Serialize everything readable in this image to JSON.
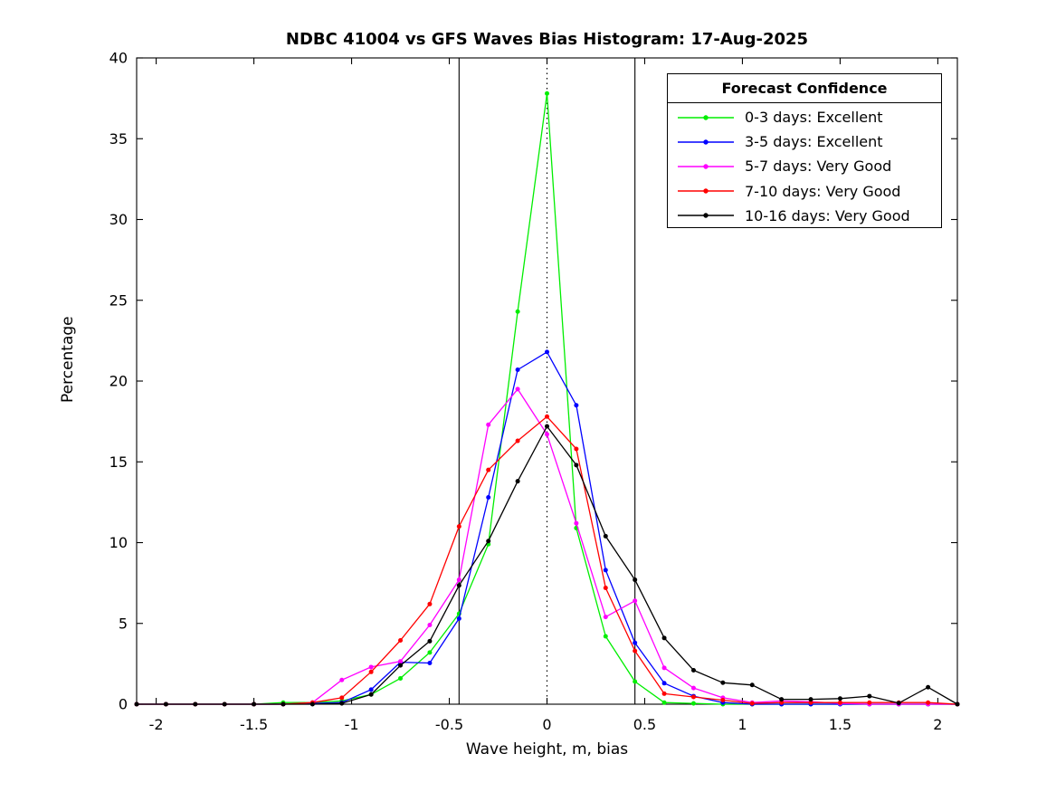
{
  "figure": {
    "title": "NDBC 41004 vs GFS Waves Bias Histogram: 17-Aug-2025",
    "background_color": "#FFFFFF",
    "axes_color": "#000000"
  },
  "chart_data": {
    "type": "line",
    "title": "NDBC 41004 vs GFS Waves Bias Histogram: 17-Aug-2025",
    "xlabel": "Wave height, m, bias",
    "ylabel": "Percentage",
    "xlim": [
      -2.1,
      2.1
    ],
    "ylim": [
      0,
      40
    ],
    "grid": false,
    "xticks": [
      -2,
      -1.5,
      -1,
      -0.5,
      0,
      0.5,
      1,
      1.5,
      2
    ],
    "xtick_labels": [
      "-2",
      "-1.5",
      "-1",
      "-0.5",
      "0",
      "0.5",
      "1",
      "1.5",
      "2"
    ],
    "yticks": [
      0,
      5,
      10,
      15,
      20,
      25,
      30,
      35,
      40
    ],
    "ytick_labels": [
      "0",
      "5",
      "10",
      "15",
      "20",
      "25",
      "30",
      "35",
      "40"
    ],
    "reference_lines": {
      "solid_vertical": [
        -0.45,
        0.45
      ],
      "dotted_vertical": [
        0
      ]
    },
    "legend": {
      "title": "Forecast Confidence",
      "position": "top-right"
    },
    "x": [
      -2.1,
      -1.95,
      -1.8,
      -1.65,
      -1.5,
      -1.35,
      -1.2,
      -1.05,
      -0.9,
      -0.75,
      -0.6,
      -0.45,
      -0.3,
      -0.15,
      0,
      0.15,
      0.3,
      0.45,
      0.6,
      0.75,
      0.9,
      1.05,
      1.2,
      1.35,
      1.5,
      1.65,
      1.8,
      1.95,
      2.1
    ],
    "series": [
      {
        "name": "0-3 days: Excellent",
        "color": "#00EE00",
        "values": [
          0,
          0,
          0,
          0,
          0,
          0.1,
          0.1,
          0.2,
          0.6,
          1.6,
          3.2,
          5.6,
          9.9,
          24.3,
          37.8,
          10.9,
          4.2,
          1.4,
          0.1,
          0.05,
          0,
          0,
          0,
          0,
          0,
          0,
          0,
          0,
          0
        ]
      },
      {
        "name": "3-5 days: Excellent",
        "color": "#0000FF",
        "values": [
          0,
          0,
          0,
          0,
          0,
          0,
          0.05,
          0.1,
          0.9,
          2.6,
          2.55,
          5.3,
          12.8,
          20.7,
          21.8,
          18.5,
          8.3,
          3.8,
          1.3,
          0.5,
          0.1,
          0,
          0,
          0,
          0,
          0,
          0,
          0,
          0
        ]
      },
      {
        "name": "5-7 days: Very Good",
        "color": "#FF00FF",
        "values": [
          0,
          0,
          0,
          0,
          0,
          0,
          0.1,
          1.5,
          2.3,
          2.65,
          4.9,
          7.7,
          17.3,
          19.5,
          16.7,
          11.2,
          5.4,
          6.4,
          2.25,
          1.0,
          0.4,
          0.1,
          0.2,
          0.15,
          0.05,
          0,
          0,
          0,
          0
        ]
      },
      {
        "name": "7-10 days: Very Good",
        "color": "#FF0000",
        "values": [
          0,
          0,
          0,
          0,
          0,
          0,
          0.1,
          0.4,
          2.0,
          3.95,
          6.2,
          11.0,
          14.5,
          16.3,
          17.8,
          15.8,
          7.2,
          3.3,
          0.65,
          0.45,
          0.25,
          0.05,
          0.1,
          0.1,
          0.1,
          0.1,
          0.1,
          0.1,
          0
        ]
      },
      {
        "name": "10-16 days: Very Good",
        "color": "#000000",
        "values": [
          0,
          0,
          0,
          0,
          0,
          0,
          0,
          0.05,
          0.6,
          2.4,
          3.9,
          7.35,
          10.1,
          13.8,
          17.2,
          14.8,
          10.4,
          7.7,
          4.1,
          2.1,
          1.33,
          1.19,
          0.3,
          0.3,
          0.35,
          0.5,
          0.07,
          1.05,
          0
        ]
      }
    ]
  }
}
